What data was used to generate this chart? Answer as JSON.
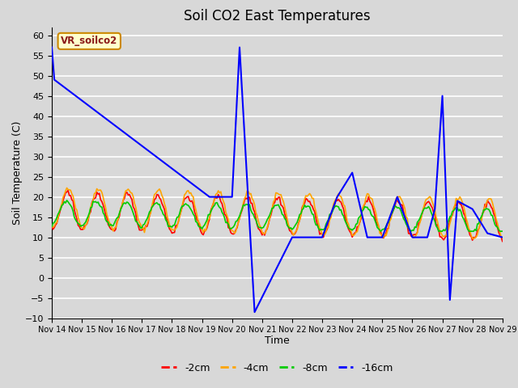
{
  "title": "Soil CO2 East Temperatures",
  "xlabel": "Time",
  "ylabel": "Soil Temperature (C)",
  "ylim": [
    -10,
    62
  ],
  "yticks": [
    -10,
    -5,
    0,
    5,
    10,
    15,
    20,
    25,
    30,
    35,
    40,
    45,
    50,
    55,
    60
  ],
  "xlim": [
    0,
    360
  ],
  "xtick_positions": [
    0,
    24,
    48,
    72,
    96,
    120,
    144,
    168,
    192,
    216,
    240,
    264,
    288,
    312,
    336,
    360
  ],
  "xtick_labels": [
    "Nov 14",
    "Nov 15",
    "Nov 16",
    "Nov 17",
    "Nov 18",
    "Nov 19",
    "Nov 20",
    "Nov 21",
    "Nov 22",
    "Nov 23",
    "Nov 24",
    "Nov 25",
    "Nov 26",
    "Nov 27",
    "Nov 28",
    "Nov 29"
  ],
  "colors": {
    "2cm": "#ff0000",
    "4cm": "#ffa500",
    "8cm": "#00cc00",
    "16cm": "#0000ff"
  },
  "legend_label": "VR_soilco2",
  "bg_color": "#d8d8d8",
  "grid_color": "#ffffff",
  "title_fontsize": 12,
  "axis_fontsize": 9,
  "tick_fontsize": 8,
  "xtick_fontsize": 7
}
